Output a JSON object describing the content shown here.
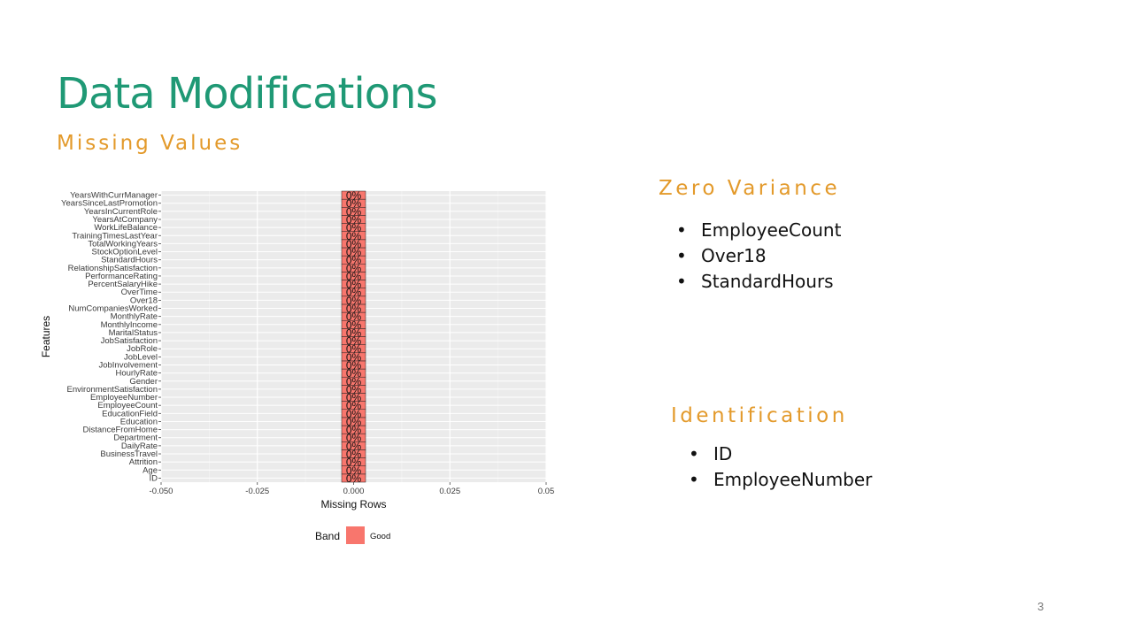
{
  "slide": {
    "title": "Data Modifications",
    "subtitle": "Missing Values",
    "page_number": "3"
  },
  "zero_variance": {
    "heading": "Zero Variance",
    "items": [
      "EmployeeCount",
      "Over18",
      "StandardHours"
    ]
  },
  "identification": {
    "heading": "Identification",
    "items": [
      "ID",
      "EmployeeNumber"
    ]
  },
  "chart_data": {
    "type": "bar",
    "orientation": "horizontal",
    "categories": [
      "ID",
      "Age",
      "Attrition",
      "BusinessTravel",
      "DailyRate",
      "Department",
      "DistanceFromHome",
      "Education",
      "EducationField",
      "EmployeeCount",
      "EmployeeNumber",
      "EnvironmentSatisfaction",
      "Gender",
      "HourlyRate",
      "JobInvolvement",
      "JobLevel",
      "JobRole",
      "JobSatisfaction",
      "MaritalStatus",
      "MonthlyIncome",
      "MonthlyRate",
      "NumCompaniesWorked",
      "Over18",
      "OverTime",
      "PercentSalaryHike",
      "PerformanceRating",
      "RelationshipSatisfaction",
      "StandardHours",
      "StockOptionLevel",
      "TotalWorkingYears",
      "TrainingTimesLastYear",
      "WorkLifeBalance",
      "YearsAtCompany",
      "YearsInCurrentRole",
      "YearsSinceLastPromotion",
      "YearsWithCurrManager"
    ],
    "values": [
      0,
      0,
      0,
      0,
      0,
      0,
      0,
      0,
      0,
      0,
      0,
      0,
      0,
      0,
      0,
      0,
      0,
      0,
      0,
      0,
      0,
      0,
      0,
      0,
      0,
      0,
      0,
      0,
      0,
      0,
      0,
      0,
      0,
      0,
      0,
      0
    ],
    "bar_label": "0%",
    "xlabel": "Missing Rows",
    "ylabel": "Features",
    "xlim": [
      -0.05,
      0.05
    ],
    "x_ticks": [
      -0.05,
      -0.025,
      0,
      0.025,
      0.05
    ],
    "x_tick_labels": [
      "-0.050",
      "-0.025",
      "0.000",
      "0.025",
      "0.05"
    ],
    "legend": {
      "title": "Band",
      "entries": [
        {
          "label": "Good",
          "color": "#f8766d"
        }
      ],
      "placement": "bottom"
    },
    "grid": true,
    "panel_color": "#ebebeb",
    "bar_color": "#f8766d"
  }
}
